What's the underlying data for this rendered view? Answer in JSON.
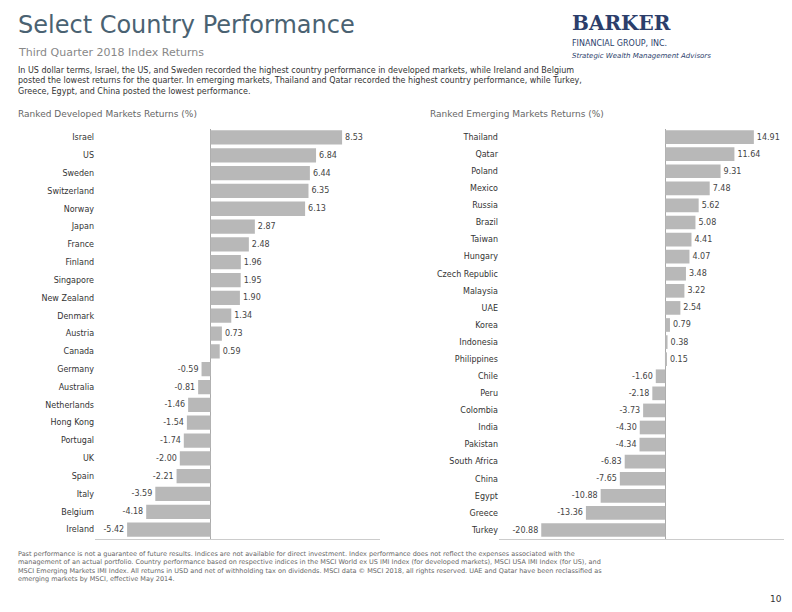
{
  "title": "Select Country Performance",
  "subtitle": "Third Quarter 2018 Index Returns",
  "annotations": [
    "BARKER",
    "FINANCIAL GROUP, INC.",
    "Strategic Wealth Management Advisors",
    "In US dollar terms, Israel, the US, and Sweden recorded the highest country performance in developed markets, while Ireland and Belgium\nposted the lowest returns for the quarter. In emerging markets, Thailand and Qatar recorded the highest country performance, while Turkey,\nGreece, Egypt, and China posted the lowest performance.",
    "Past performance is not a guarantee of future results. Indices are not available for direct investment. Index performance does not reflect the expenses associated with the\nmanagement of an actual portfolio. Country performance based on respective indices in the MSCI World ex US IMI Index (for developed markets), MSCI USA IMI Index (for US), and\nMSCI Emerging Markets IMI Index. All returns in USD and net of withholding tax on dividends. MSCI data © MSCI 2018, all rights reserved. UAE and Qatar have been reclassified as\nemerging markets by MSCI, effective May 2014.",
    "10"
  ],
  "chart_data": [
    {
      "type": "bar",
      "orientation": "horizontal",
      "title": "Ranked Developed Markets Returns (%)",
      "categories": [
        "Israel",
        "US",
        "Sweden",
        "Switzerland",
        "Norway",
        "Japan",
        "France",
        "Finland",
        "Singapore",
        "New Zealand",
        "Denmark",
        "Austria",
        "Canada",
        "Germany",
        "Australia",
        "Netherlands",
        "Hong Kong",
        "Portugal",
        "UK",
        "Spain",
        "Italy",
        "Belgium",
        "Ireland"
      ],
      "values": [
        8.53,
        6.84,
        6.44,
        6.35,
        6.13,
        2.87,
        2.48,
        1.96,
        1.95,
        1.9,
        1.34,
        0.73,
        0.59,
        -0.59,
        -0.81,
        -1.46,
        -1.54,
        -1.74,
        -2.0,
        -2.21,
        -3.59,
        -4.18,
        -5.42
      ],
      "value_labels": [
        "8.53",
        "6.84",
        "6.44",
        "6.35",
        "6.13",
        "2.87",
        "2.48",
        "1.96",
        "1.95",
        "1.90",
        "1.34",
        "0.73",
        "0.59",
        "-0.59",
        "-0.81",
        "-1.46",
        "-1.54",
        "-1.74",
        "-2.00",
        "-2.21",
        "-3.59",
        "-4.18",
        "-5.42"
      ],
      "color": "#b8b8b8",
      "xlim": [
        -7.5,
        11
      ],
      "data_labels": true,
      "tick_labels": "y",
      "grid": false
    },
    {
      "type": "bar",
      "orientation": "horizontal",
      "title": "Ranked Emerging Markets Returns (%)",
      "categories": [
        "Thailand",
        "Qatar",
        "Poland",
        "Mexico",
        "Russia",
        "Brazil",
        "Taiwan",
        "Hungary",
        "Czech Republic",
        "Malaysia",
        "UAE",
        "Korea",
        "Indonesia",
        "Philippines",
        "Chile",
        "Peru",
        "Colombia",
        "India",
        "Pakistan",
        "South Africa",
        "China",
        "Egypt",
        "Greece",
        "Turkey"
      ],
      "values": [
        14.91,
        11.64,
        9.31,
        7.48,
        5.62,
        5.08,
        4.41,
        4.07,
        3.48,
        3.22,
        2.54,
        0.79,
        0.38,
        0.15,
        -1.6,
        -2.18,
        -3.73,
        -4.3,
        -4.34,
        -6.83,
        -7.65,
        -10.88,
        -13.36,
        -20.88
      ],
      "value_labels": [
        "14.91",
        "11.64",
        "9.31",
        "7.48",
        "5.62",
        "5.08",
        "4.41",
        "4.07",
        "3.48",
        "3.22",
        "2.54",
        "0.79",
        "0.38",
        "0.15",
        "-1.60",
        "-2.18",
        "-3.73",
        "-4.30",
        "-4.34",
        "-6.83",
        "-7.65",
        "-10.88",
        "-13.36",
        "-20.88"
      ],
      "color": "#b8b8b8",
      "xlim": [
        -28,
        20
      ],
      "data_labels": true,
      "tick_labels": "y",
      "grid": false
    }
  ]
}
